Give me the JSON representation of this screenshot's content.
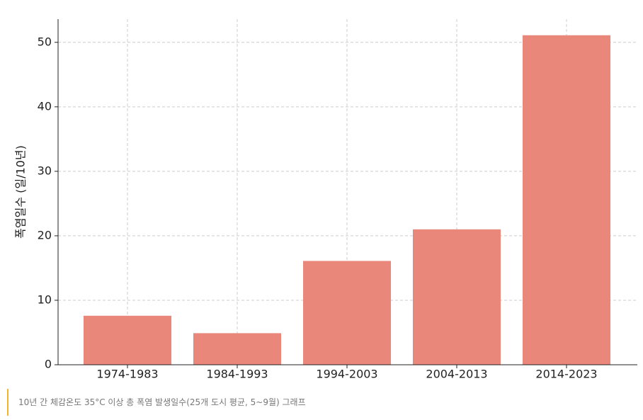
{
  "chart_data": {
    "type": "bar",
    "ylabel": "폭염일수 (일/10년)",
    "categories": [
      "1974-1983",
      "1984-1993",
      "1994-2003",
      "2004-2013",
      "2014-2023"
    ],
    "values": [
      7.6,
      4.9,
      16.1,
      21.0,
      51.1
    ],
    "color": "#e8877a",
    "ylim": [
      0,
      53.6
    ],
    "yticks": [
      0,
      10,
      20,
      30,
      40,
      50
    ],
    "grid": true
  },
  "caption": "10년 간 체감온도 35°C 이상 총 폭염 발생일수(25개 도시 평균, 5~9월) 그래프"
}
